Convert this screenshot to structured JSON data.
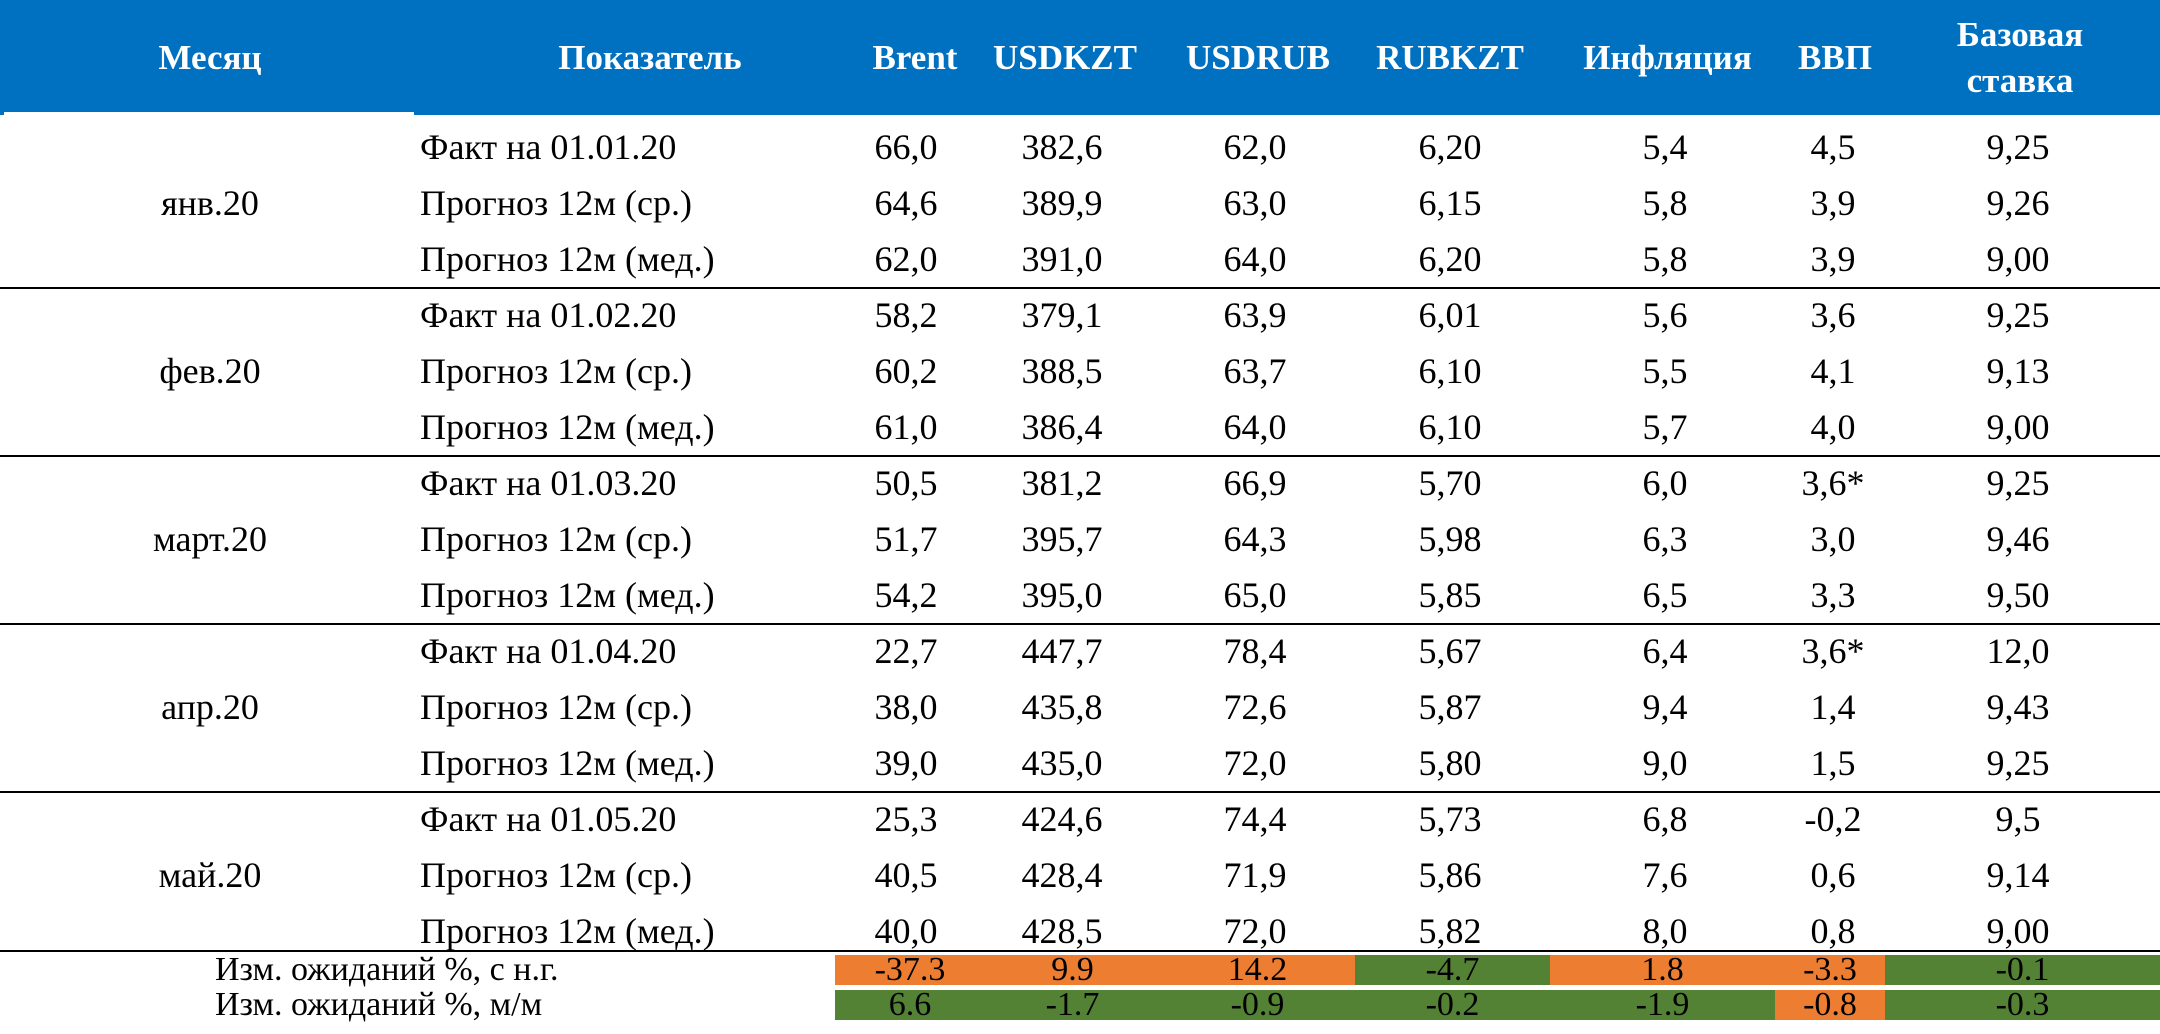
{
  "header": {
    "month": "Месяц",
    "indicator": "Показатель",
    "columns": [
      "Brent",
      "USDKZT",
      "USDRUB",
      "RUBKZT",
      "Инфляция",
      "ВВП"
    ],
    "base_rate_line1": "Базовая",
    "base_rate_line2": "ставка"
  },
  "groups": [
    {
      "month": "янв.20",
      "rows": [
        {
          "label": "Факт на 01.01.20",
          "values": [
            "66,0",
            "382,6",
            "62,0",
            "6,20",
            "5,4",
            "4,5",
            "9,25"
          ]
        },
        {
          "label": "Прогноз 12м (ср.)",
          "values": [
            "64,6",
            "389,9",
            "63,0",
            "6,15",
            "5,8",
            "3,9",
            "9,26"
          ]
        },
        {
          "label": "Прогноз 12м (мед.)",
          "values": [
            "62,0",
            "391,0",
            "64,0",
            "6,20",
            "5,8",
            "3,9",
            "9,00"
          ]
        }
      ]
    },
    {
      "month": "фев.20",
      "rows": [
        {
          "label": "Факт на 01.02.20",
          "values": [
            "58,2",
            "379,1",
            "63,9",
            "6,01",
            "5,6",
            "3,6",
            "9,25"
          ]
        },
        {
          "label": "Прогноз 12м (ср.)",
          "values": [
            "60,2",
            "388,5",
            "63,7",
            "6,10",
            "5,5",
            "4,1",
            "9,13"
          ]
        },
        {
          "label": "Прогноз 12м (мед.)",
          "values": [
            "61,0",
            "386,4",
            "64,0",
            "6,10",
            "5,7",
            "4,0",
            "9,00"
          ]
        }
      ]
    },
    {
      "month": "март.20",
      "rows": [
        {
          "label": "Факт на 01.03.20",
          "values": [
            "50,5",
            "381,2",
            "66,9",
            "5,70",
            "6,0",
            "3,6*",
            "9,25"
          ]
        },
        {
          "label": "Прогноз 12м (ср.)",
          "values": [
            "51,7",
            "395,7",
            "64,3",
            "5,98",
            "6,3",
            "3,0",
            "9,46"
          ]
        },
        {
          "label": "Прогноз 12м (мед.)",
          "values": [
            "54,2",
            "395,0",
            "65,0",
            "5,85",
            "6,5",
            "3,3",
            "9,50"
          ]
        }
      ]
    },
    {
      "month": "апр.20",
      "rows": [
        {
          "label": "Факт на 01.04.20",
          "values": [
            "22,7",
            "447,7",
            "78,4",
            "5,67",
            "6,4",
            "3,6*",
            "12,0"
          ]
        },
        {
          "label": "Прогноз 12м (ср.)",
          "values": [
            "38,0",
            "435,8",
            "72,6",
            "5,87",
            "9,4",
            "1,4",
            "9,43"
          ]
        },
        {
          "label": "Прогноз 12м (мед.)",
          "values": [
            "39,0",
            "435,0",
            "72,0",
            "5,80",
            "9,0",
            "1,5",
            "9,25"
          ]
        }
      ]
    },
    {
      "month": "май.20",
      "rows": [
        {
          "label": "Факт на 01.05.20",
          "values": [
            "25,3",
            "424,6",
            "74,4",
            "5,73",
            "6,8",
            "-0,2",
            "9,5"
          ]
        },
        {
          "label": "Прогноз 12м (ср.)",
          "values": [
            "40,5",
            "428,4",
            "71,9",
            "5,86",
            "7,6",
            "0,6",
            "9,14"
          ]
        },
        {
          "label": "Прогноз 12м (мед.)",
          "values": [
            "40,0",
            "428,5",
            "72,0",
            "5,82",
            "8,0",
            "0,8",
            "9,00"
          ]
        }
      ]
    }
  ],
  "summary": [
    {
      "label": "Изм. ожиданий %,  с н.г.",
      "values": [
        "-37.3",
        "9.9",
        "14.2",
        "-4.7",
        "1.8",
        "-3.3",
        "-0.1"
      ],
      "fills": [
        "#ed7d31",
        "#ed7d31",
        "#ed7d31",
        "#548235",
        "#ed7d31",
        "#ed7d31",
        "#548235"
      ]
    },
    {
      "label": "Изм. ожиданий %, м/м",
      "values": [
        "6.6",
        "-1.7",
        "-0.9",
        "-0.2",
        "-1.9",
        "-0.8",
        "-0.3"
      ],
      "fills": [
        "#548235",
        "#548235",
        "#548235",
        "#548235",
        "#548235",
        "#ed7d31",
        "#548235"
      ]
    }
  ],
  "colors": {
    "header": "#0070c0",
    "positive": "#ed7d31",
    "negative": "#548235"
  }
}
